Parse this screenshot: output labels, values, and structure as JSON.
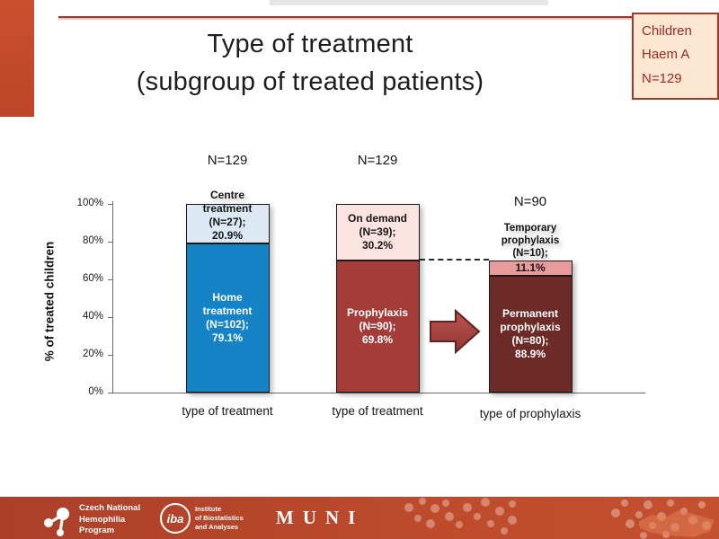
{
  "slide": {
    "title_line1": "Type of treatment",
    "title_line2": "(subgroup of treated patients)",
    "badge": {
      "lines": [
        "Children",
        "Haem A",
        "N=129"
      ]
    },
    "colors": {
      "accent_bar": "#c24b2d",
      "top_rule": "#8e3a2e",
      "badge_bg": "#fbe7d2",
      "badge_border": "#a13828",
      "badge_text": "#9c2a23",
      "footer_bg": "#b5442b"
    }
  },
  "chart_data": {
    "type": "bar",
    "stacked": true,
    "ylabel": "% of treated children",
    "ylim": [
      0,
      100
    ],
    "yticks": [
      "0%",
      "20%",
      "40%",
      "60%",
      "80%",
      "100%"
    ],
    "grid": false,
    "bars": [
      {
        "n_label": "N=129",
        "axis_label": "type of treatment",
        "segments": [
          {
            "name": "Home treatment",
            "n": 102,
            "pct": 79.1,
            "from": 0,
            "to": 79.1,
            "color": "#1583c5",
            "text_color": "#ffffff",
            "label_lines": [
              "Home",
              "treatment",
              "(N=102);",
              "79.1%"
            ],
            "label_pos": "inside"
          },
          {
            "name": "Centre treatment",
            "n": 27,
            "pct": 20.9,
            "from": 79.1,
            "to": 100,
            "color": "#dce9f5",
            "text_color": "#161616",
            "label_lines": [
              "Centre",
              "treatment",
              "(N=27);",
              "20.9%"
            ],
            "label_pos": "overflow-top"
          }
        ]
      },
      {
        "n_label": "N=129",
        "axis_label": "type of treatment",
        "segments": [
          {
            "name": "Prophylaxis",
            "n": 90,
            "pct": 69.8,
            "from": 0,
            "to": 69.8,
            "color": "#a43c3a",
            "text_color": "#ffffff",
            "label_lines": [
              "Prophylaxis",
              "(N=90);",
              "69.8%"
            ],
            "label_pos": "inside"
          },
          {
            "name": "On demand",
            "n": 39,
            "pct": 30.2,
            "from": 69.8,
            "to": 100,
            "color": "#fbe3e2",
            "text_color": "#161616",
            "label_lines": [
              "On demand",
              "(N=39);",
              "30.2%"
            ],
            "label_pos": "inside"
          }
        ]
      },
      {
        "n_label": "N=90",
        "axis_label": "type of prophylaxis",
        "segments": [
          {
            "name": "Permanent prophylaxis",
            "n": 80,
            "pct": 88.9,
            "from": 0,
            "to": 62.0,
            "color": "#6d2b28",
            "text_color": "#ffffff",
            "label_lines": [
              "Permanent",
              "prophylaxis",
              "(N=80);",
              "88.9%"
            ],
            "label_pos": "inside"
          },
          {
            "name": "Temporary prophylaxis",
            "n": 10,
            "pct": 11.1,
            "from": 62.0,
            "to": 69.8,
            "color": "#e89b9a",
            "text_color": "#161616",
            "label_lines": [
              "11.1%"
            ],
            "label_pos": "inside",
            "label_lines_above": [
              "Temporary",
              "prophylaxis",
              "(N=10);"
            ]
          }
        ]
      }
    ],
    "connector": {
      "at_pct": 69.8,
      "style": "dashed"
    }
  },
  "footer": {
    "org1": {
      "lines": [
        "Czech National",
        "Hemophilia",
        "Program"
      ]
    },
    "iba": {
      "logo_text": "iba",
      "lines": [
        "Institute",
        "of Biostatistics",
        "and Analyses"
      ]
    },
    "muni": "MUNI"
  }
}
